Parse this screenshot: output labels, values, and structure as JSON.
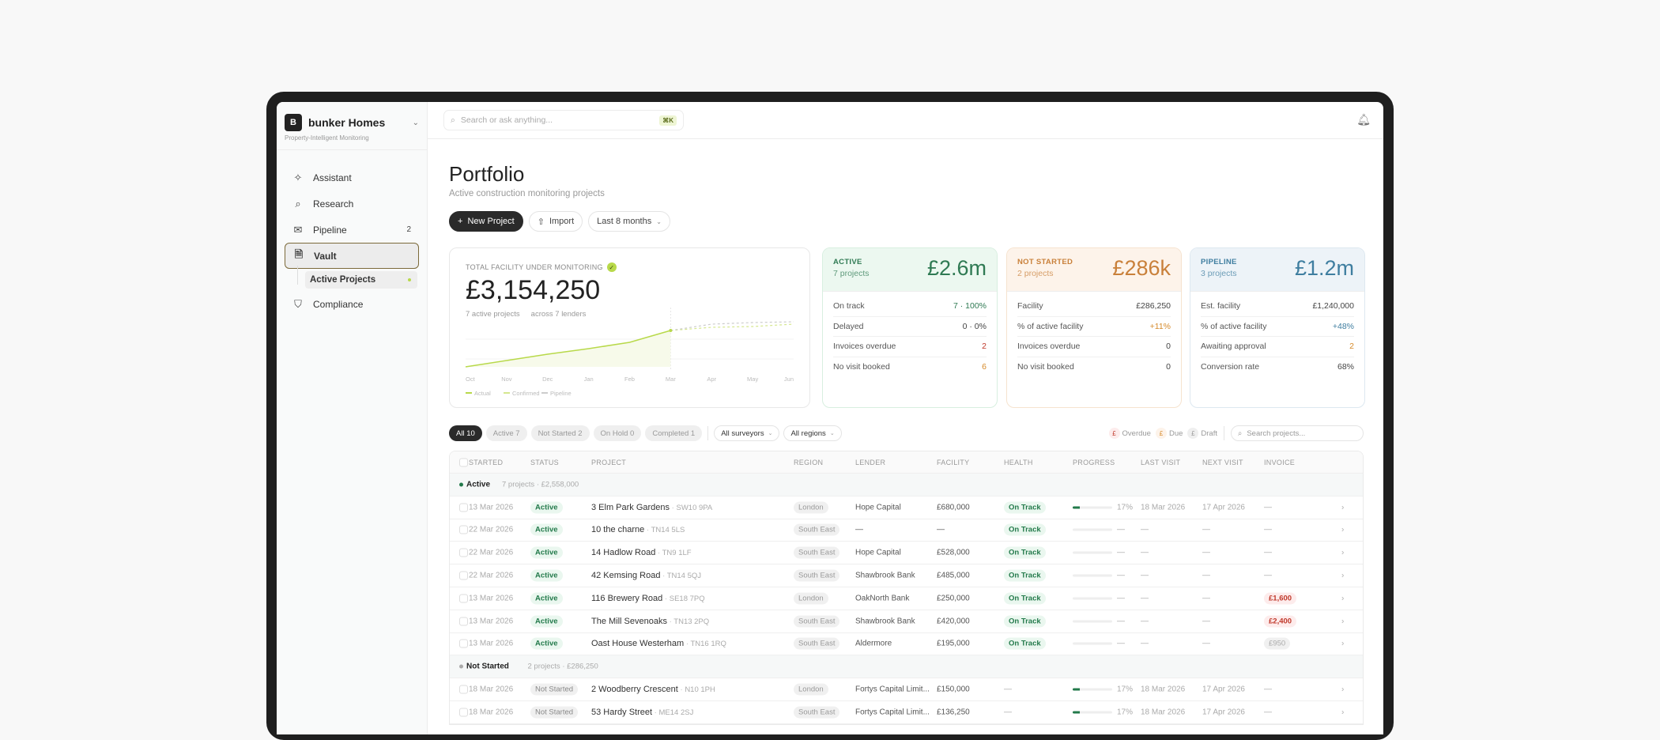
{
  "sidebar": {
    "logo_letter": "B",
    "brand": "bunker Homes",
    "tagline": "Property-Intelligent Monitoring",
    "items": [
      {
        "label": "Assistant",
        "icon": "sparkle-icon"
      },
      {
        "label": "Research",
        "icon": "search-icon"
      },
      {
        "label": "Pipeline",
        "icon": "mail-icon",
        "count": "2"
      },
      {
        "label": "Vault",
        "icon": "document-icon"
      },
      {
        "label": "Compliance",
        "icon": "shield-icon"
      }
    ],
    "sub_item": "Active Projects"
  },
  "topbar": {
    "search_placeholder": "Search or ask anything...",
    "shortcut": "⌘K"
  },
  "page": {
    "title": "Portfolio",
    "subtitle": "Active construction monitoring projects",
    "new_project": "New Project",
    "import": "Import",
    "range": "Last 8 months"
  },
  "summary": {
    "label": "TOTAL FACILITY UNDER MONITORING",
    "value": "£3,154,250",
    "projects": "7 active projects",
    "lenders": "across 7 lenders"
  },
  "chart_data": {
    "type": "line",
    "categories": [
      "Oct",
      "Nov",
      "Dec",
      "Jan",
      "Feb",
      "Mar",
      "Apr",
      "May",
      "Jun"
    ],
    "series": [
      {
        "name": "Actual",
        "values": [
          0,
          8,
          16,
          23,
          31,
          46,
          null,
          null,
          null
        ],
        "color": "#b8d94a"
      },
      {
        "name": "Confirmed",
        "values": [
          null,
          null,
          null,
          null,
          null,
          46,
          50,
          51,
          54
        ],
        "color": "#d5e78f"
      },
      {
        "name": "Pipeline",
        "values": [
          null,
          null,
          null,
          null,
          null,
          46,
          54,
          56,
          57
        ],
        "color": "#cccccc"
      }
    ],
    "ylim": [
      0,
      60
    ],
    "grid": true,
    "legend": "bottom-left"
  },
  "cards": [
    {
      "label": "ACTIVE",
      "sub": "7 projects",
      "value": "£2.6m",
      "bg": "#ecf8f0",
      "color": "#2f7a53",
      "border": "#d8efe0",
      "rows": [
        [
          "On track",
          "7 · 100%",
          "#2f7a53"
        ],
        [
          "Delayed",
          "0 · 0%",
          "#444"
        ],
        [
          "Invoices overdue",
          "2",
          "#c0392b"
        ],
        [
          "No visit booked",
          "6",
          "#d68a2a"
        ]
      ]
    },
    {
      "label": "NOT STARTED",
      "sub": "2 projects",
      "value": "£286k",
      "bg": "#fdf3ea",
      "color": "#c9803a",
      "border": "#f6e3cf",
      "rows": [
        [
          "Facility",
          "£286,250",
          "#444"
        ],
        [
          "% of active facility",
          "+11%",
          "#d68a2a"
        ],
        [
          "Invoices overdue",
          "0",
          "#444"
        ],
        [
          "No visit booked",
          "0",
          "#444"
        ]
      ]
    },
    {
      "label": "PIPELINE",
      "sub": "3 projects",
      "value": "£1.2m",
      "bg": "#edf3f8",
      "color": "#3f7ea0",
      "border": "#dde8f0",
      "rows": [
        [
          "Est. facility",
          "£1,240,000",
          "#444"
        ],
        [
          "% of active facility",
          "+48%",
          "#3f7ea0"
        ],
        [
          "Awaiting approval",
          "2",
          "#d68a2a"
        ],
        [
          "Conversion rate",
          "68%",
          "#444"
        ]
      ]
    }
  ],
  "filters": {
    "chips": [
      "All 10",
      "Active 7",
      "Not Started 2",
      "On Hold 0",
      "Completed 1"
    ],
    "surveyors": "All surveyors",
    "regions": "All regions",
    "legend": [
      {
        "label": "Overdue",
        "bg": "#fdecec",
        "color": "#c0392b"
      },
      {
        "label": "Due",
        "bg": "#fdf3ea",
        "color": "#d68a2a"
      },
      {
        "label": "Draft",
        "bg": "#efefef",
        "color": "#999"
      }
    ],
    "search_placeholder": "Search projects..."
  },
  "table": {
    "columns": [
      "STARTED",
      "STATUS",
      "PROJECT",
      "REGION",
      "LENDER",
      "FACILITY",
      "HEALTH",
      "PROGRESS",
      "LAST VISIT",
      "NEXT VISIT",
      "INVOICE"
    ],
    "groups": [
      {
        "name": "Active",
        "meta": "7 projects · £2,558,000",
        "dot": "#237a4b",
        "rows": [
          {
            "started": "13 Mar 2026",
            "status": "Active",
            "project": "3 Elm Park Gardens",
            "postcode": "SW10 9PA",
            "region": "London",
            "lender": "Hope Capital",
            "facility": "£680,000",
            "health": "On Track",
            "progress": 17,
            "progress_label": "17%",
            "last": "18 Mar 2026",
            "next": "17 Apr 2026",
            "invoice": "—",
            "invoice_type": "none"
          },
          {
            "started": "22 Mar 2026",
            "status": "Active",
            "project": "10 the charne",
            "postcode": "TN14 5LS",
            "region": "South East",
            "lender": "—",
            "facility": "—",
            "health": "On Track",
            "progress": 0,
            "progress_label": "—",
            "last": "—",
            "next": "—",
            "invoice": "—",
            "invoice_type": "none"
          },
          {
            "started": "22 Mar 2026",
            "status": "Active",
            "project": "14 Hadlow Road",
            "postcode": "TN9 1LF",
            "region": "South East",
            "lender": "Hope Capital",
            "facility": "£528,000",
            "health": "On Track",
            "progress": 0,
            "progress_label": "—",
            "last": "—",
            "next": "—",
            "invoice": "—",
            "invoice_type": "none"
          },
          {
            "started": "22 Mar 2026",
            "status": "Active",
            "project": "42 Kemsing Road",
            "postcode": "TN14 5QJ",
            "region": "South East",
            "lender": "Shawbrook Bank",
            "facility": "£485,000",
            "health": "On Track",
            "progress": 0,
            "progress_label": "—",
            "last": "—",
            "next": "—",
            "invoice": "—",
            "invoice_type": "none"
          },
          {
            "started": "13 Mar 2026",
            "status": "Active",
            "project": "116 Brewery Road",
            "postcode": "SE18 7PQ",
            "region": "London",
            "lender": "OakNorth Bank",
            "facility": "£250,000",
            "health": "On Track",
            "progress": 0,
            "progress_label": "—",
            "last": "—",
            "next": "—",
            "invoice": "£1,600",
            "invoice_type": "overdue"
          },
          {
            "started": "13 Mar 2026",
            "status": "Active",
            "project": "The Mill Sevenoaks",
            "postcode": "TN13 2PQ",
            "region": "South East",
            "lender": "Shawbrook Bank",
            "facility": "£420,000",
            "health": "On Track",
            "progress": 0,
            "progress_label": "—",
            "last": "—",
            "next": "—",
            "invoice": "£2,400",
            "invoice_type": "overdue"
          },
          {
            "started": "13 Mar 2026",
            "status": "Active",
            "project": "Oast House Westerham",
            "postcode": "TN16 1RQ",
            "region": "South East",
            "lender": "Aldermore",
            "facility": "£195,000",
            "health": "On Track",
            "progress": 0,
            "progress_label": "—",
            "last": "—",
            "next": "—",
            "invoice": "£950",
            "invoice_type": "draft"
          }
        ]
      },
      {
        "name": "Not Started",
        "meta": "2 projects · £286,250",
        "dot": "#aaaaaa",
        "rows": [
          {
            "started": "18 Mar 2026",
            "status": "Not Started",
            "project": "2 Woodberry Crescent",
            "postcode": "N10 1PH",
            "region": "London",
            "lender": "Fortys Capital Limit...",
            "facility": "£150,000",
            "health": "—",
            "progress": 17,
            "progress_label": "17%",
            "last": "18 Mar 2026",
            "next": "17 Apr 2026",
            "invoice": "—",
            "invoice_type": "none"
          },
          {
            "started": "18 Mar 2026",
            "status": "Not Started",
            "project": "53 Hardy Street",
            "postcode": "ME14 2SJ",
            "region": "South East",
            "lender": "Fortys Capital Limit...",
            "facility": "£136,250",
            "health": "—",
            "progress": 17,
            "progress_label": "17%",
            "last": "18 Mar 2026",
            "next": "17 Apr 2026",
            "invoice": "—",
            "invoice_type": "none"
          }
        ]
      }
    ]
  }
}
